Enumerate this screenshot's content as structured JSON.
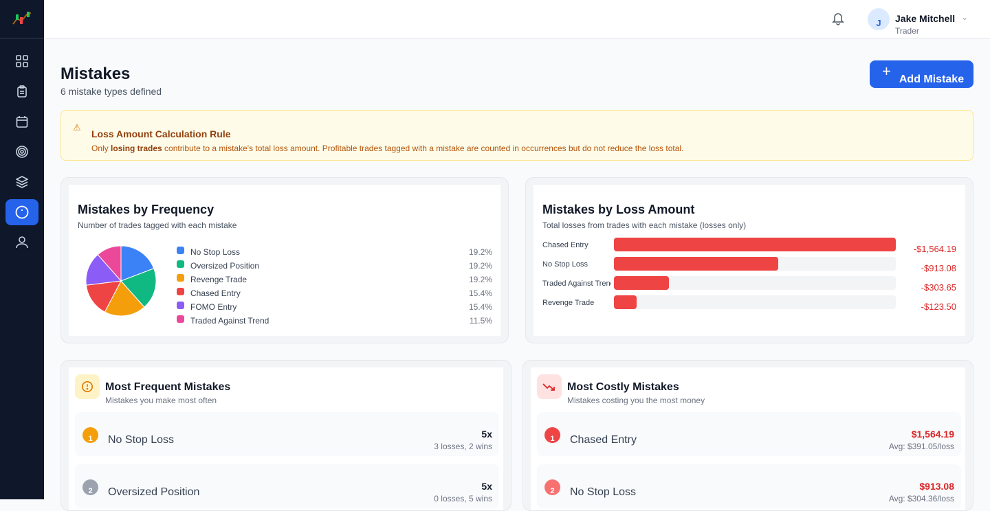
{
  "user": {
    "name": "Jake Mitchell",
    "role": "Trader",
    "initial": "J"
  },
  "page": {
    "title": "Mistakes",
    "subtitle": "6 mistake types defined",
    "add_button": "Add Mistake"
  },
  "alert": {
    "title": "Loss Amount Calculation Rule",
    "pre": "Only ",
    "bold": "losing trades",
    "post": " contribute to a mistake's total loss amount. Profitable trades tagged with a mistake are counted in occurrences but do not reduce the loss total."
  },
  "frequency": {
    "title": "Mistakes by Frequency",
    "subtitle": "Number of trades tagged with each mistake",
    "items": [
      {
        "label": "No Stop Loss",
        "pct": "19.2%",
        "value": 19.2,
        "color": "#3b82f6"
      },
      {
        "label": "Oversized Position",
        "pct": "19.2%",
        "value": 19.2,
        "color": "#10b981"
      },
      {
        "label": "Revenge Trade",
        "pct": "19.2%",
        "value": 19.2,
        "color": "#f59e0b"
      },
      {
        "label": "Chased Entry",
        "pct": "15.4%",
        "value": 15.4,
        "color": "#ef4444"
      },
      {
        "label": "FOMO Entry",
        "pct": "15.4%",
        "value": 15.4,
        "color": "#8b5cf6"
      },
      {
        "label": "Traded Against Trend",
        "pct": "11.5%",
        "value": 11.5,
        "color": "#ec4899"
      }
    ]
  },
  "loss": {
    "title": "Mistakes by Loss Amount",
    "subtitle": "Total losses from trades with each mistake (losses only)",
    "items": [
      {
        "label": "Chased Entry",
        "amount": "-$1,564.19",
        "value": 1564.19
      },
      {
        "label": "No Stop Loss",
        "amount": "-$913.08",
        "value": 913.08
      },
      {
        "label": "Traded Against Trend",
        "amount": "-$303.65",
        "value": 303.65
      },
      {
        "label": "Revenge Trade",
        "amount": "-$123.50",
        "value": 123.5
      }
    ]
  },
  "frequent": {
    "title": "Most Frequent Mistakes",
    "subtitle": "Mistakes you make most often",
    "items": [
      {
        "rank": "1",
        "name": "No Stop Loss",
        "value": "5x",
        "detail": "3 losses, 2 wins"
      },
      {
        "rank": "2",
        "name": "Oversized Position",
        "value": "5x",
        "detail": "0 losses, 5 wins"
      }
    ]
  },
  "costly": {
    "title": "Most Costly Mistakes",
    "subtitle": "Mistakes costing you the most money",
    "items": [
      {
        "rank": "1",
        "name": "Chased Entry",
        "value": "$1,564.19",
        "detail": "Avg: $391.05/loss"
      },
      {
        "rank": "2",
        "name": "No Stop Loss",
        "value": "$913.08",
        "detail": "Avg: $304.36/loss"
      }
    ]
  }
}
